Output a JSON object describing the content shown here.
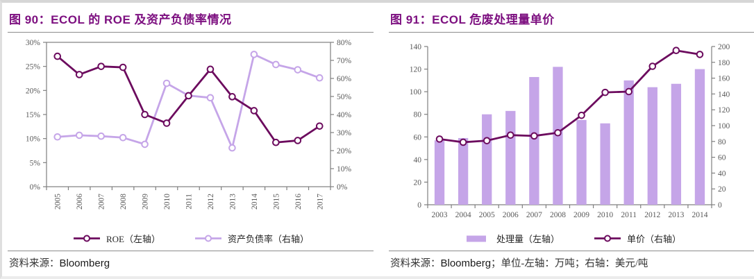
{
  "page": {
    "background": "#FFFFFF",
    "accent_color": "#7D1080",
    "dark_series_color": "#6C0B5E",
    "light_series_color": "#C5A5E8",
    "axis_text_color": "#595959"
  },
  "figures": [
    {
      "title": "图 90：ECOL 的 ROE 及资产负债率情况",
      "source_label": "资料来源：",
      "source_value": "Bloomberg",
      "source_extra": ""
    },
    {
      "title": "图 91：ECOL 危废处理量单价",
      "source_label": "资料来源：",
      "source_value": "Bloomberg",
      "source_extra": "；单位-左轴：万吨；右轴：美元/吨"
    }
  ],
  "chart_data": [
    {
      "type": "line",
      "title": "图 90：ECOL 的 ROE 及资产负债率情况",
      "categories": [
        "2005",
        "2006",
        "2007",
        "2008",
        "2009",
        "2010",
        "2011",
        "2012",
        "2013",
        "2014",
        "2015",
        "2016",
        "2017"
      ],
      "left_axis": {
        "min": 0,
        "max": 30,
        "step": 5,
        "suffix": "%",
        "label": "ROE (%)"
      },
      "right_axis": {
        "min": 0,
        "max": 80,
        "step": 10,
        "suffix": "%",
        "label": "资产负债率 (%)"
      },
      "grid": false,
      "legend_position": "bottom",
      "series": [
        {
          "name": "ROE（左轴）",
          "type": "line",
          "axis": "left",
          "color": "#6C0B5E",
          "values": [
            27.1,
            23.3,
            25.0,
            24.8,
            15.0,
            13.2,
            18.9,
            24.4,
            18.7,
            15.8,
            9.2,
            9.6,
            12.6
          ]
        },
        {
          "name": "资产负债率（右轴）",
          "type": "line",
          "axis": "right",
          "color": "#C5A5E8",
          "values": [
            27.6,
            28.5,
            28.0,
            27.2,
            23.5,
            57.3,
            50.5,
            49.3,
            21.5,
            73.3,
            67.7,
            64.8,
            60.3
          ]
        }
      ]
    },
    {
      "type": "bar+line",
      "title": "图 91：ECOL 危废处理量单价",
      "categories": [
        "2003",
        "2004",
        "2005",
        "2006",
        "2007",
        "2008",
        "2009",
        "2010",
        "2011",
        "2012",
        "2013",
        "2014"
      ],
      "left_axis": {
        "min": 0,
        "max": 140,
        "step": 20,
        "suffix": "",
        "label": "处理量 (万吨)"
      },
      "right_axis": {
        "min": 0,
        "max": 200,
        "step": 20,
        "suffix": "",
        "label": "单价 (美元/吨)"
      },
      "grid": false,
      "legend_position": "bottom",
      "series": [
        {
          "name": "处理量（左轴）",
          "type": "bar",
          "axis": "left",
          "color": "#C5A5E8",
          "values": [
            57,
            59,
            80,
            83,
            113,
            122,
            75,
            72,
            110,
            104,
            107,
            120
          ]
        },
        {
          "name": "单价（右轴）",
          "type": "line",
          "axis": "right",
          "color": "#6C0B5E",
          "values": [
            83,
            79,
            81,
            88,
            87,
            91,
            113,
            142,
            143,
            175,
            195,
            190
          ]
        }
      ]
    }
  ]
}
